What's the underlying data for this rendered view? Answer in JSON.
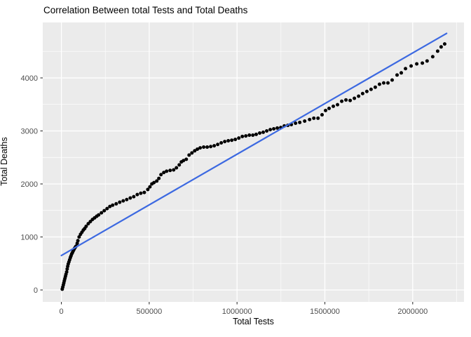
{
  "chart_data": {
    "type": "scatter",
    "title": "Correlation Between total Tests and Total Deaths",
    "xlabel": "Total Tests",
    "ylabel": "Total Deaths",
    "legend": "none",
    "grid": "major+minor",
    "xlim": [
      -106000,
      2292000
    ],
    "ylim": [
      -225,
      5046
    ],
    "x_ticks": [
      0,
      500000,
      1000000,
      1500000,
      2000000
    ],
    "x_tick_labels": [
      "0",
      "500000",
      "1000000",
      "1500000",
      "2000000"
    ],
    "x_minor_ticks": [
      250000,
      750000,
      1250000,
      1750000,
      2250000
    ],
    "y_ticks": [
      0,
      1000,
      2000,
      3000,
      4000
    ],
    "y_tick_labels": [
      "0",
      "1000",
      "2000",
      "3000",
      "4000"
    ],
    "y_minor_ticks": [
      500,
      1500,
      2500,
      3500,
      4500
    ],
    "colors": {
      "page_bg": "#FFFFFF",
      "panel_bg": "#EBEBEB",
      "grid": "#FFFFFF",
      "point": "#000000",
      "trend_line": "#3C69E1",
      "tick_text": "#4D4D4D",
      "tick_mark": "#333333",
      "text": "#000000"
    },
    "trend_line": {
      "type": "linear",
      "x": [
        0,
        2193000
      ],
      "y": [
        650,
        4840
      ]
    },
    "points": [
      [
        5000,
        15
      ],
      [
        8000,
        55
      ],
      [
        11000,
        95
      ],
      [
        14000,
        135
      ],
      [
        17000,
        175
      ],
      [
        20000,
        215
      ],
      [
        23000,
        255
      ],
      [
        26000,
        295
      ],
      [
        30000,
        340
      ],
      [
        33000,
        395
      ],
      [
        36000,
        445
      ],
      [
        39000,
        490
      ],
      [
        43000,
        530
      ],
      [
        47000,
        570
      ],
      [
        51000,
        610
      ],
      [
        55000,
        645
      ],
      [
        59000,
        680
      ],
      [
        63000,
        705
      ],
      [
        67000,
        735
      ],
      [
        71000,
        760
      ],
      [
        75000,
        785
      ],
      [
        79000,
        805
      ],
      [
        83000,
        825
      ],
      [
        90000,
        880
      ],
      [
        94000,
        930
      ],
      [
        101000,
        1000
      ],
      [
        109000,
        1050
      ],
      [
        117000,
        1090
      ],
      [
        125000,
        1130
      ],
      [
        133000,
        1160
      ],
      [
        141000,
        1200
      ],
      [
        153000,
        1250
      ],
      [
        165000,
        1290
      ],
      [
        177000,
        1330
      ],
      [
        189000,
        1360
      ],
      [
        201000,
        1390
      ],
      [
        212000,
        1415
      ],
      [
        228000,
        1455
      ],
      [
        244000,
        1495
      ],
      [
        260000,
        1535
      ],
      [
        276000,
        1575
      ],
      [
        292000,
        1600
      ],
      [
        312000,
        1625
      ],
      [
        332000,
        1655
      ],
      [
        352000,
        1680
      ],
      [
        372000,
        1705
      ],
      [
        392000,
        1735
      ],
      [
        412000,
        1760
      ],
      [
        432000,
        1800
      ],
      [
        452000,
        1825
      ],
      [
        472000,
        1840
      ],
      [
        492000,
        1895
      ],
      [
        504000,
        1945
      ],
      [
        515000,
        2000
      ],
      [
        527000,
        2025
      ],
      [
        543000,
        2055
      ],
      [
        555000,
        2105
      ],
      [
        567000,
        2175
      ],
      [
        583000,
        2215
      ],
      [
        599000,
        2240
      ],
      [
        619000,
        2255
      ],
      [
        639000,
        2265
      ],
      [
        655000,
        2305
      ],
      [
        671000,
        2360
      ],
      [
        683000,
        2415
      ],
      [
        695000,
        2440
      ],
      [
        711000,
        2465
      ],
      [
        727000,
        2545
      ],
      [
        743000,
        2585
      ],
      [
        759000,
        2625
      ],
      [
        774000,
        2655
      ],
      [
        790000,
        2680
      ],
      [
        810000,
        2695
      ],
      [
        830000,
        2695
      ],
      [
        850000,
        2705
      ],
      [
        870000,
        2720
      ],
      [
        890000,
        2745
      ],
      [
        910000,
        2775
      ],
      [
        930000,
        2800
      ],
      [
        950000,
        2815
      ],
      [
        970000,
        2825
      ],
      [
        990000,
        2840
      ],
      [
        1010000,
        2865
      ],
      [
        1030000,
        2895
      ],
      [
        1050000,
        2905
      ],
      [
        1070000,
        2920
      ],
      [
        1090000,
        2920
      ],
      [
        1109000,
        2935
      ],
      [
        1129000,
        2960
      ],
      [
        1149000,
        2975
      ],
      [
        1169000,
        3000
      ],
      [
        1189000,
        3025
      ],
      [
        1209000,
        3040
      ],
      [
        1229000,
        3055
      ],
      [
        1249000,
        3065
      ],
      [
        1269000,
        3095
      ],
      [
        1289000,
        3105
      ],
      [
        1309000,
        3120
      ],
      [
        1333000,
        3145
      ],
      [
        1357000,
        3160
      ],
      [
        1385000,
        3185
      ],
      [
        1413000,
        3215
      ],
      [
        1437000,
        3240
      ],
      [
        1461000,
        3240
      ],
      [
        1484000,
        3305
      ],
      [
        1504000,
        3385
      ],
      [
        1524000,
        3425
      ],
      [
        1548000,
        3465
      ],
      [
        1572000,
        3495
      ],
      [
        1596000,
        3560
      ],
      [
        1620000,
        3585
      ],
      [
        1644000,
        3575
      ],
      [
        1668000,
        3615
      ],
      [
        1692000,
        3655
      ],
      [
        1715000,
        3705
      ],
      [
        1739000,
        3745
      ],
      [
        1763000,
        3785
      ],
      [
        1787000,
        3825
      ],
      [
        1811000,
        3880
      ],
      [
        1835000,
        3905
      ],
      [
        1859000,
        3905
      ],
      [
        1883000,
        3960
      ],
      [
        1911000,
        4055
      ],
      [
        1935000,
        4095
      ],
      [
        1959000,
        4175
      ],
      [
        1991000,
        4225
      ],
      [
        2023000,
        4265
      ],
      [
        2055000,
        4280
      ],
      [
        2082000,
        4320
      ],
      [
        2114000,
        4400
      ],
      [
        2142000,
        4505
      ],
      [
        2162000,
        4585
      ],
      [
        2182000,
        4640
      ]
    ]
  }
}
